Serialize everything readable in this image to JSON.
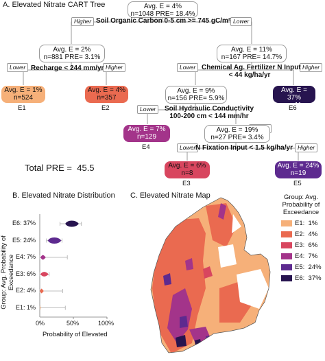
{
  "panelA": {
    "title": "A. Elevated Nitrate CART Tree",
    "root": {
      "line1": "Avg. E = 4%",
      "line2": "n=1048 PRE= 18.4%"
    },
    "split1": "Soil Organic Carbon 0-5 cm >= 745 gC/m²",
    "tag_higher": "Higher",
    "tag_lower": "Lower",
    "n2": {
      "line1": "Avg. E = 2%",
      "line2": "n=881 PRE= 3.1%"
    },
    "split2": "Recharge < 244 mm/yr",
    "n3": {
      "line1": "Avg. E = 11%",
      "line2": "n=167 PRE= 14.7%"
    },
    "split3_line1": "Chemical Ag. Fertilizer N Input",
    "split3_line2": "< 44 kg/ha/yr",
    "E1": {
      "line1": "Avg. E = 1%",
      "line2": "n=524",
      "label": "E1",
      "color": "#f6b079"
    },
    "E2": {
      "line1": "Avg. E = 4%",
      "line2": "n=357",
      "label": "E2",
      "color": "#ea6a50"
    },
    "n4": {
      "line1": "Avg. E = 9%",
      "line2": "n=156 PRE= 5.9%"
    },
    "split4_line1": "Soil Hydraulic Conductivity",
    "split4_line2": "100-200 cm < 144 mm/hr",
    "E6": {
      "line1": "Avg. E = 37%",
      "line2": "n=11",
      "label": "E6",
      "color": "#27144f"
    },
    "E4": {
      "line1": "Avg. E = 7%",
      "line2": "n=129",
      "label": "E4",
      "color": "#a3348a"
    },
    "n5": {
      "line1": "Avg. E = 19%",
      "line2": "n=27 PRE= 3.4%"
    },
    "split5": "N Fixation Input < 1.5 kg/ha/yr",
    "E3": {
      "line1": "Avg. E = 6%",
      "line2": "n=8",
      "label": "E3",
      "color": "#d8465f"
    },
    "E5": {
      "line1": "Avg. E = 24%",
      "line2": "n=19",
      "label": "E5",
      "color": "#5d2a8f"
    },
    "total_pre": "Total PRE =  45.5"
  },
  "panelB": {
    "title": "B. Elevated Nitrate Distribution",
    "ylabel": "Group: Avg. Probability of Exceedance",
    "xlabel": "Probability of Elevated",
    "xticks": [
      "0%",
      "50%",
      "100%"
    ],
    "groups": [
      {
        "label": "E6: 37%",
        "color": "#27144f",
        "q1": 38,
        "q3": 58,
        "lo": 30,
        "hi": 62
      },
      {
        "label": "E5: 24%",
        "color": "#5d2a8f",
        "q1": 12,
        "q3": 32,
        "lo": 10,
        "hi": 33
      },
      {
        "label": "E4: 7%",
        "color": "#a3348a",
        "q1": 1,
        "q3": 9,
        "lo": 0,
        "hi": 41
      },
      {
        "label": "E3: 6%",
        "color": "#d8465f",
        "q1": 1,
        "q3": 13,
        "lo": 0,
        "hi": 14
      },
      {
        "label": "E2: 4%",
        "color": "#ea6a50",
        "q1": 0,
        "q3": 6,
        "lo": 0,
        "hi": 34
      },
      {
        "label": "E1: 1%",
        "color": "#f6b079",
        "q1": 0,
        "q3": 2,
        "lo": 0,
        "hi": 38
      }
    ]
  },
  "panelC": {
    "title": "C. Elevated Nitrate Map",
    "legend_title_line1": "Group: Avg.",
    "legend_title_line2": "Probability of",
    "legend_title_line3": "Exceedance",
    "legend": [
      {
        "label": "E1:  1%",
        "color": "#f6b079"
      },
      {
        "label": "E2:  4%",
        "color": "#ea6a50"
      },
      {
        "label": "E3:  6%",
        "color": "#d8465f"
      },
      {
        "label": "E4:  7%",
        "color": "#a3348a"
      },
      {
        "label": "E5:  24%",
        "color": "#5d2a8f"
      },
      {
        "label": "E6:  37%",
        "color": "#27144f"
      }
    ]
  }
}
